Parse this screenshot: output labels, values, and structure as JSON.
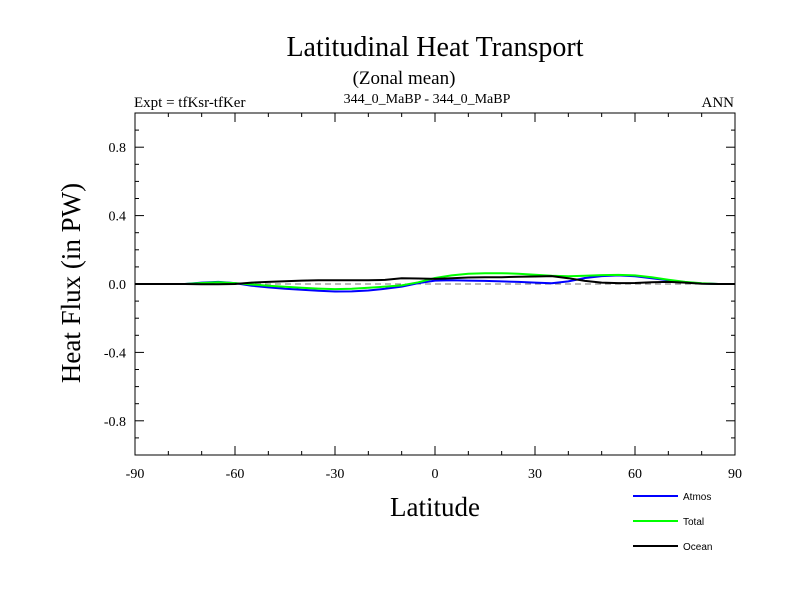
{
  "chart_data": {
    "type": "line",
    "title": "Latitudinal Heat Transport",
    "subtitle": "(Zonal mean)",
    "left_label": "Expt = tfKsr-tfKer",
    "center_label": "344_0_MaBP - 344_0_MaBP",
    "right_label": "ANN",
    "xlabel": "Latitude",
    "ylabel": "Heat Flux (in PW)",
    "xlim": [
      -90,
      90
    ],
    "ylim": [
      -1.0,
      1.0
    ],
    "xticks": [
      -90,
      -60,
      -30,
      0,
      30,
      60,
      90
    ],
    "xtick_labels": [
      "-90",
      "-60",
      "-30",
      "0",
      "30",
      "60",
      "90"
    ],
    "yticks": [
      -0.8,
      -0.4,
      0.0,
      0.4,
      0.8
    ],
    "ytick_labels": [
      "-0.8",
      "-0.4",
      "0.0",
      "0.4",
      "0.8"
    ],
    "zero_line": "dashed",
    "legend_position": "bottom-right",
    "series": [
      {
        "name": "Atmos",
        "color": "#0000ff",
        "x": [
          -90,
          -75,
          -70,
          -65,
          -60,
          -55,
          -50,
          -45,
          -40,
          -35,
          -30,
          -25,
          -20,
          -15,
          -10,
          -5,
          0,
          5,
          10,
          15,
          20,
          25,
          30,
          35,
          40,
          45,
          50,
          55,
          60,
          65,
          70,
          75,
          80,
          85,
          90
        ],
        "y": [
          0.0,
          0.0,
          0.008,
          0.012,
          0.005,
          -0.01,
          -0.02,
          -0.028,
          -0.034,
          -0.04,
          -0.044,
          -0.043,
          -0.038,
          -0.028,
          -0.015,
          0.005,
          0.02,
          0.022,
          0.02,
          0.018,
          0.015,
          0.012,
          0.008,
          0.004,
          0.015,
          0.035,
          0.046,
          0.05,
          0.045,
          0.034,
          0.022,
          0.01,
          0.003,
          0.0,
          0.0
        ]
      },
      {
        "name": "Total",
        "color": "#00ff00",
        "x": [
          -90,
          -75,
          -70,
          -65,
          -60,
          -55,
          -50,
          -45,
          -40,
          -35,
          -30,
          -25,
          -20,
          -15,
          -10,
          -5,
          0,
          5,
          10,
          15,
          20,
          25,
          30,
          35,
          40,
          45,
          50,
          55,
          60,
          65,
          70,
          75,
          80,
          85,
          90
        ],
        "y": [
          0.0,
          0.0,
          0.006,
          0.01,
          0.005,
          -0.003,
          -0.01,
          -0.016,
          -0.022,
          -0.027,
          -0.03,
          -0.028,
          -0.022,
          -0.015,
          -0.008,
          0.01,
          0.035,
          0.05,
          0.06,
          0.063,
          0.063,
          0.06,
          0.054,
          0.048,
          0.045,
          0.048,
          0.052,
          0.053,
          0.05,
          0.04,
          0.025,
          0.012,
          0.004,
          0.0,
          0.0
        ]
      },
      {
        "name": "Ocean",
        "color": "#000000",
        "x": [
          -90,
          -75,
          -70,
          -65,
          -60,
          -55,
          -50,
          -45,
          -40,
          -35,
          -30,
          -25,
          -20,
          -15,
          -10,
          -5,
          0,
          5,
          10,
          15,
          20,
          25,
          30,
          35,
          40,
          45,
          50,
          55,
          60,
          65,
          70,
          75,
          80,
          85,
          90
        ],
        "y": [
          0.0,
          0.0,
          -0.002,
          -0.002,
          0.0,
          0.008,
          0.012,
          0.016,
          0.02,
          0.022,
          0.022,
          0.022,
          0.022,
          0.024,
          0.034,
          0.032,
          0.03,
          0.034,
          0.038,
          0.04,
          0.04,
          0.042,
          0.044,
          0.046,
          0.034,
          0.018,
          0.008,
          0.005,
          0.006,
          0.01,
          0.012,
          0.008,
          0.002,
          0.0,
          0.0
        ]
      }
    ]
  }
}
